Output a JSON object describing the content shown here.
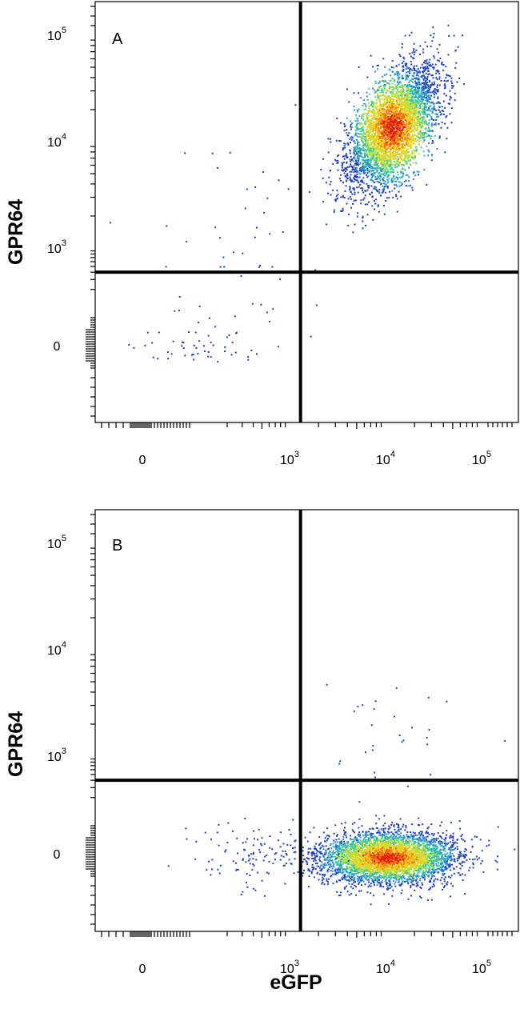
{
  "chart_data": [
    {
      "type": "scatter",
      "panel_label": "A",
      "xlabel": "eGFP",
      "ylabel": "GPR64",
      "x_scale": "biexponential",
      "y_scale": "biexponential",
      "x_ticks": [
        {
          "value": 0,
          "base": "0",
          "exp": ""
        },
        {
          "value": 1000,
          "base": "10",
          "exp": "3"
        },
        {
          "value": 10000,
          "base": "10",
          "exp": "4"
        },
        {
          "value": 100000,
          "base": "10",
          "exp": "5"
        }
      ],
      "y_ticks": [
        {
          "value": 0,
          "base": "0",
          "exp": ""
        },
        {
          "value": 1000,
          "base": "10",
          "exp": "3"
        },
        {
          "value": 10000,
          "base": "10",
          "exp": "4"
        },
        {
          "value": 100000,
          "base": "10",
          "exp": "5"
        }
      ],
      "quadrant_gate": {
        "x": 1300,
        "y": 400
      },
      "populations": [
        {
          "name": "",
          "center_x": 10000,
          "center_y": 10000,
          "density": "high",
          "quadrant": "upper-right"
        },
        {
          "name": "",
          "center_x": 200,
          "center_y": 1000,
          "density": "sparse",
          "quadrant": "upper-left"
        },
        {
          "name": "",
          "center_x": 100,
          "center_y": 0,
          "density": "sparse",
          "quadrant": "lower-left"
        }
      ],
      "color_map": [
        "#1f3fbf",
        "#2a8fd0",
        "#37c7a0",
        "#b8e03a",
        "#f2d11e",
        "#f07a10",
        "#e02010"
      ]
    },
    {
      "type": "scatter",
      "panel_label": "B",
      "xlabel": "eGFP",
      "ylabel": "GPR64",
      "x_scale": "biexponential",
      "y_scale": "biexponential",
      "x_ticks": [
        {
          "value": 0,
          "base": "0",
          "exp": ""
        },
        {
          "value": 1000,
          "base": "10",
          "exp": "3"
        },
        {
          "value": 10000,
          "base": "10",
          "exp": "4"
        },
        {
          "value": 100000,
          "base": "10",
          "exp": "5"
        }
      ],
      "y_ticks": [
        {
          "value": 0,
          "base": "0",
          "exp": ""
        },
        {
          "value": 1000,
          "base": "10",
          "exp": "3"
        },
        {
          "value": 10000,
          "base": "10",
          "exp": "4"
        },
        {
          "value": 100000,
          "base": "10",
          "exp": "5"
        }
      ],
      "quadrant_gate": {
        "x": 1300,
        "y": 400
      },
      "populations": [
        {
          "name": "",
          "center_x": 10000,
          "center_y": 0,
          "density": "high",
          "quadrant": "lower-right"
        },
        {
          "name": "",
          "center_x": 500,
          "center_y": 0,
          "density": "sparse",
          "quadrant": "lower-left"
        },
        {
          "name": "",
          "center_x": 10000,
          "center_y": 1500,
          "density": "very sparse",
          "quadrant": "upper-right"
        }
      ],
      "color_map": [
        "#1f3fbf",
        "#2a8fd0",
        "#37c7a0",
        "#b8e03a",
        "#f2d11e",
        "#f07a10",
        "#e02010"
      ]
    }
  ],
  "shared_xlabel": "eGFP"
}
